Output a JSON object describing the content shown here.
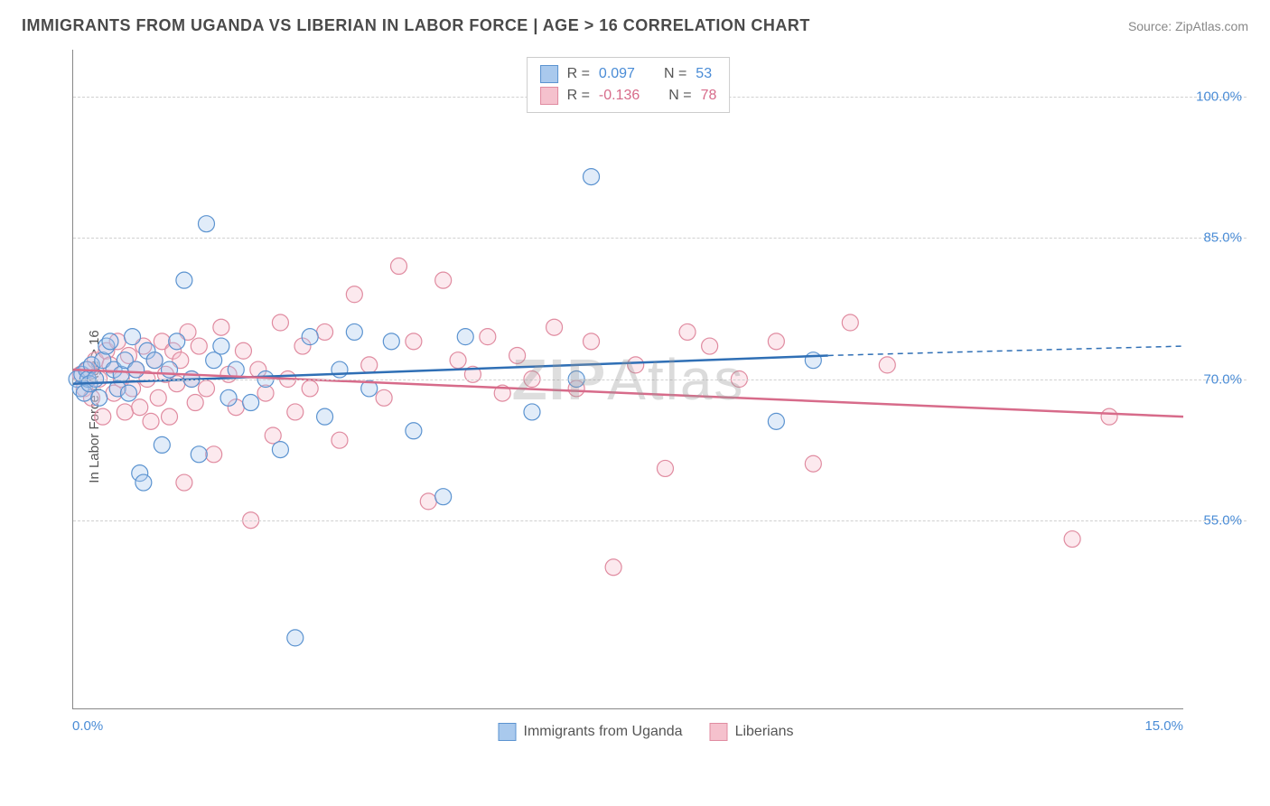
{
  "title": "IMMIGRANTS FROM UGANDA VS LIBERIAN IN LABOR FORCE | AGE > 16 CORRELATION CHART",
  "source": "Source: ZipAtlas.com",
  "ylabel": "In Labor Force | Age > 16",
  "watermark_bold": "ZIP",
  "watermark_light": "Atlas",
  "chart": {
    "type": "scatter",
    "xlim": [
      0,
      15
    ],
    "ylim": [
      35,
      105
    ],
    "xtick_labels": [
      {
        "pos": 0,
        "label": "0.0%"
      },
      {
        "pos": 15,
        "label": "15.0%"
      }
    ],
    "ytick_labels": [
      {
        "pos": 55,
        "label": "55.0%"
      },
      {
        "pos": 70,
        "label": "70.0%"
      },
      {
        "pos": 85,
        "label": "85.0%"
      },
      {
        "pos": 100,
        "label": "100.0%"
      }
    ],
    "gridlines_y": [
      55,
      70,
      85,
      100
    ],
    "background_color": "#ffffff",
    "grid_color": "#d0d0d0",
    "axis_color": "#888888",
    "marker_radius": 9,
    "marker_fill_opacity": 0.35,
    "marker_stroke_width": 1.2,
    "series": [
      {
        "name": "Immigrants from Uganda",
        "color_fill": "#a9c9ed",
        "color_stroke": "#5b93d0",
        "R": "0.097",
        "N": "53",
        "trend": {
          "x1": 0,
          "y1": 69.5,
          "x2": 10.2,
          "y2": 72.5,
          "solid_to_x": 10.2,
          "dash_to_x": 15,
          "dash_y2": 73.5,
          "stroke": "#2f6fb5",
          "width": 2.5
        },
        "points": [
          [
            0.05,
            70
          ],
          [
            0.1,
            69
          ],
          [
            0.12,
            70.5
          ],
          [
            0.15,
            68.5
          ],
          [
            0.18,
            71
          ],
          [
            0.2,
            70
          ],
          [
            0.22,
            69.5
          ],
          [
            0.25,
            71.5
          ],
          [
            0.3,
            70
          ],
          [
            0.35,
            68
          ],
          [
            0.4,
            72
          ],
          [
            0.45,
            73.5
          ],
          [
            0.5,
            74
          ],
          [
            0.55,
            71
          ],
          [
            0.6,
            69
          ],
          [
            0.65,
            70.5
          ],
          [
            0.7,
            72
          ],
          [
            0.75,
            68.5
          ],
          [
            0.8,
            74.5
          ],
          [
            0.85,
            71
          ],
          [
            0.9,
            60
          ],
          [
            0.95,
            59
          ],
          [
            1.0,
            73
          ],
          [
            1.1,
            72
          ],
          [
            1.2,
            63
          ],
          [
            1.3,
            71
          ],
          [
            1.4,
            74
          ],
          [
            1.5,
            80.5
          ],
          [
            1.6,
            70
          ],
          [
            1.7,
            62
          ],
          [
            1.8,
            86.5
          ],
          [
            1.9,
            72
          ],
          [
            2.0,
            73.5
          ],
          [
            2.1,
            68
          ],
          [
            2.2,
            71
          ],
          [
            2.4,
            67.5
          ],
          [
            2.6,
            70
          ],
          [
            2.8,
            62.5
          ],
          [
            3.0,
            42.5
          ],
          [
            3.2,
            74.5
          ],
          [
            3.4,
            66
          ],
          [
            3.6,
            71
          ],
          [
            3.8,
            75
          ],
          [
            4.0,
            69
          ],
          [
            4.3,
            74
          ],
          [
            4.6,
            64.5
          ],
          [
            5.0,
            57.5
          ],
          [
            5.3,
            74.5
          ],
          [
            6.2,
            66.5
          ],
          [
            6.8,
            70
          ],
          [
            7.0,
            91.5
          ],
          [
            9.5,
            65.5
          ],
          [
            10.0,
            72
          ]
        ]
      },
      {
        "name": "Liberians",
        "color_fill": "#f5c1cd",
        "color_stroke": "#e08ba0",
        "R": "-0.136",
        "N": "78",
        "trend": {
          "x1": 0,
          "y1": 71,
          "x2": 15,
          "y2": 66,
          "solid_to_x": 15,
          "stroke": "#d76b8a",
          "width": 2.5
        },
        "points": [
          [
            0.1,
            70.5
          ],
          [
            0.15,
            69
          ],
          [
            0.2,
            71
          ],
          [
            0.25,
            68
          ],
          [
            0.3,
            72
          ],
          [
            0.35,
            70
          ],
          [
            0.4,
            66
          ],
          [
            0.45,
            73
          ],
          [
            0.5,
            71.5
          ],
          [
            0.55,
            68.5
          ],
          [
            0.6,
            74
          ],
          [
            0.65,
            70
          ],
          [
            0.7,
            66.5
          ],
          [
            0.75,
            72.5
          ],
          [
            0.8,
            69
          ],
          [
            0.85,
            71
          ],
          [
            0.9,
            67
          ],
          [
            0.95,
            73.5
          ],
          [
            1.0,
            70
          ],
          [
            1.05,
            65.5
          ],
          [
            1.1,
            72
          ],
          [
            1.15,
            68
          ],
          [
            1.2,
            74
          ],
          [
            1.25,
            70.5
          ],
          [
            1.3,
            66
          ],
          [
            1.35,
            73
          ],
          [
            1.4,
            69.5
          ],
          [
            1.45,
            72
          ],
          [
            1.5,
            59
          ],
          [
            1.55,
            75
          ],
          [
            1.6,
            70
          ],
          [
            1.65,
            67.5
          ],
          [
            1.7,
            73.5
          ],
          [
            1.8,
            69
          ],
          [
            1.9,
            62
          ],
          [
            2.0,
            75.5
          ],
          [
            2.1,
            70.5
          ],
          [
            2.2,
            67
          ],
          [
            2.3,
            73
          ],
          [
            2.4,
            55
          ],
          [
            2.5,
            71
          ],
          [
            2.6,
            68.5
          ],
          [
            2.7,
            64
          ],
          [
            2.8,
            76
          ],
          [
            2.9,
            70
          ],
          [
            3.0,
            66.5
          ],
          [
            3.1,
            73.5
          ],
          [
            3.2,
            69
          ],
          [
            3.4,
            75
          ],
          [
            3.6,
            63.5
          ],
          [
            3.8,
            79
          ],
          [
            4.0,
            71.5
          ],
          [
            4.2,
            68
          ],
          [
            4.4,
            82
          ],
          [
            4.6,
            74
          ],
          [
            4.8,
            57
          ],
          [
            5.0,
            80.5
          ],
          [
            5.2,
            72
          ],
          [
            5.4,
            70.5
          ],
          [
            5.6,
            74.5
          ],
          [
            5.8,
            68.5
          ],
          [
            6.0,
            72.5
          ],
          [
            6.2,
            70
          ],
          [
            6.5,
            75.5
          ],
          [
            6.8,
            69
          ],
          [
            7.0,
            74
          ],
          [
            7.3,
            50
          ],
          [
            7.6,
            71.5
          ],
          [
            8.0,
            60.5
          ],
          [
            8.3,
            75
          ],
          [
            8.6,
            73.5
          ],
          [
            9.0,
            70
          ],
          [
            9.5,
            74
          ],
          [
            10.0,
            61
          ],
          [
            10.5,
            76
          ],
          [
            11.0,
            71.5
          ],
          [
            13.5,
            53
          ],
          [
            14.0,
            66
          ]
        ]
      }
    ]
  },
  "legend_top": {
    "stat1_label": "R =",
    "stat2_label": "N ="
  },
  "colors": {
    "title": "#4a4a4a",
    "source": "#888888",
    "tick_label": "#4a8cd6",
    "uganda_stat": "#4a8cd6",
    "liberia_stat": "#d76b8a"
  }
}
